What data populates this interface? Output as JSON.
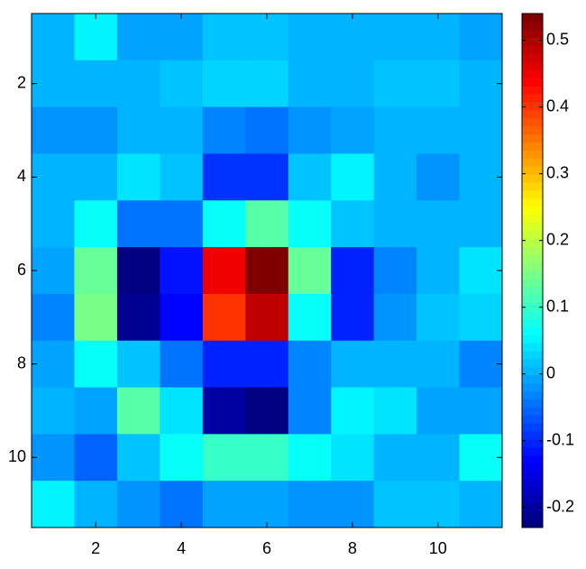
{
  "chart_data": {
    "type": "heatmap",
    "colormap": "jet",
    "z": [
      [
        0.01,
        0.05,
        -0.01,
        -0.01,
        0.02,
        0.02,
        0.01,
        0.01,
        0.01,
        0.01,
        -0.01
      ],
      [
        0.01,
        0.01,
        0.01,
        0.02,
        0.03,
        0.03,
        0.01,
        0.01,
        0.02,
        0.02,
        0.01
      ],
      [
        -0.02,
        -0.02,
        0.0,
        0.0,
        -0.03,
        -0.04,
        -0.02,
        -0.01,
        0.0,
        0.0,
        0.0
      ],
      [
        0.0,
        0.01,
        0.04,
        0.02,
        -0.09,
        -0.09,
        0.02,
        0.05,
        0.0,
        -0.02,
        0.0
      ],
      [
        0.0,
        0.06,
        -0.04,
        -0.04,
        0.07,
        0.12,
        0.06,
        0.02,
        0.0,
        0.0,
        0.01
      ],
      [
        -0.01,
        0.14,
        -0.22,
        -0.12,
        0.45,
        0.54,
        0.14,
        -0.1,
        -0.03,
        0.0,
        0.04
      ],
      [
        -0.03,
        0.15,
        -0.21,
        -0.13,
        0.4,
        0.48,
        0.07,
        -0.1,
        -0.02,
        0.02,
        0.03
      ],
      [
        -0.01,
        0.06,
        0.02,
        -0.04,
        -0.1,
        -0.1,
        -0.03,
        0.01,
        0.01,
        0.0,
        -0.03
      ],
      [
        0.0,
        -0.01,
        0.12,
        0.04,
        -0.2,
        -0.22,
        -0.03,
        0.05,
        0.04,
        -0.01,
        -0.01
      ],
      [
        -0.02,
        -0.06,
        0.02,
        0.06,
        0.1,
        0.1,
        0.07,
        0.04,
        0.0,
        0.0,
        0.06
      ],
      [
        0.05,
        0.0,
        -0.02,
        -0.04,
        -0.01,
        -0.01,
        -0.02,
        -0.02,
        0.02,
        0.02,
        0.0
      ]
    ],
    "xlim": [
      0.5,
      11.5
    ],
    "ylim": [
      0.5,
      11.5
    ],
    "xticks": [
      2,
      4,
      6,
      8,
      10
    ],
    "yticks": [
      2,
      4,
      6,
      8,
      10
    ],
    "clim": [
      -0.23,
      0.54
    ],
    "cticks": [
      -0.2,
      -0.1,
      0,
      0.1,
      0.2,
      0.3,
      0.4,
      0.5
    ]
  }
}
